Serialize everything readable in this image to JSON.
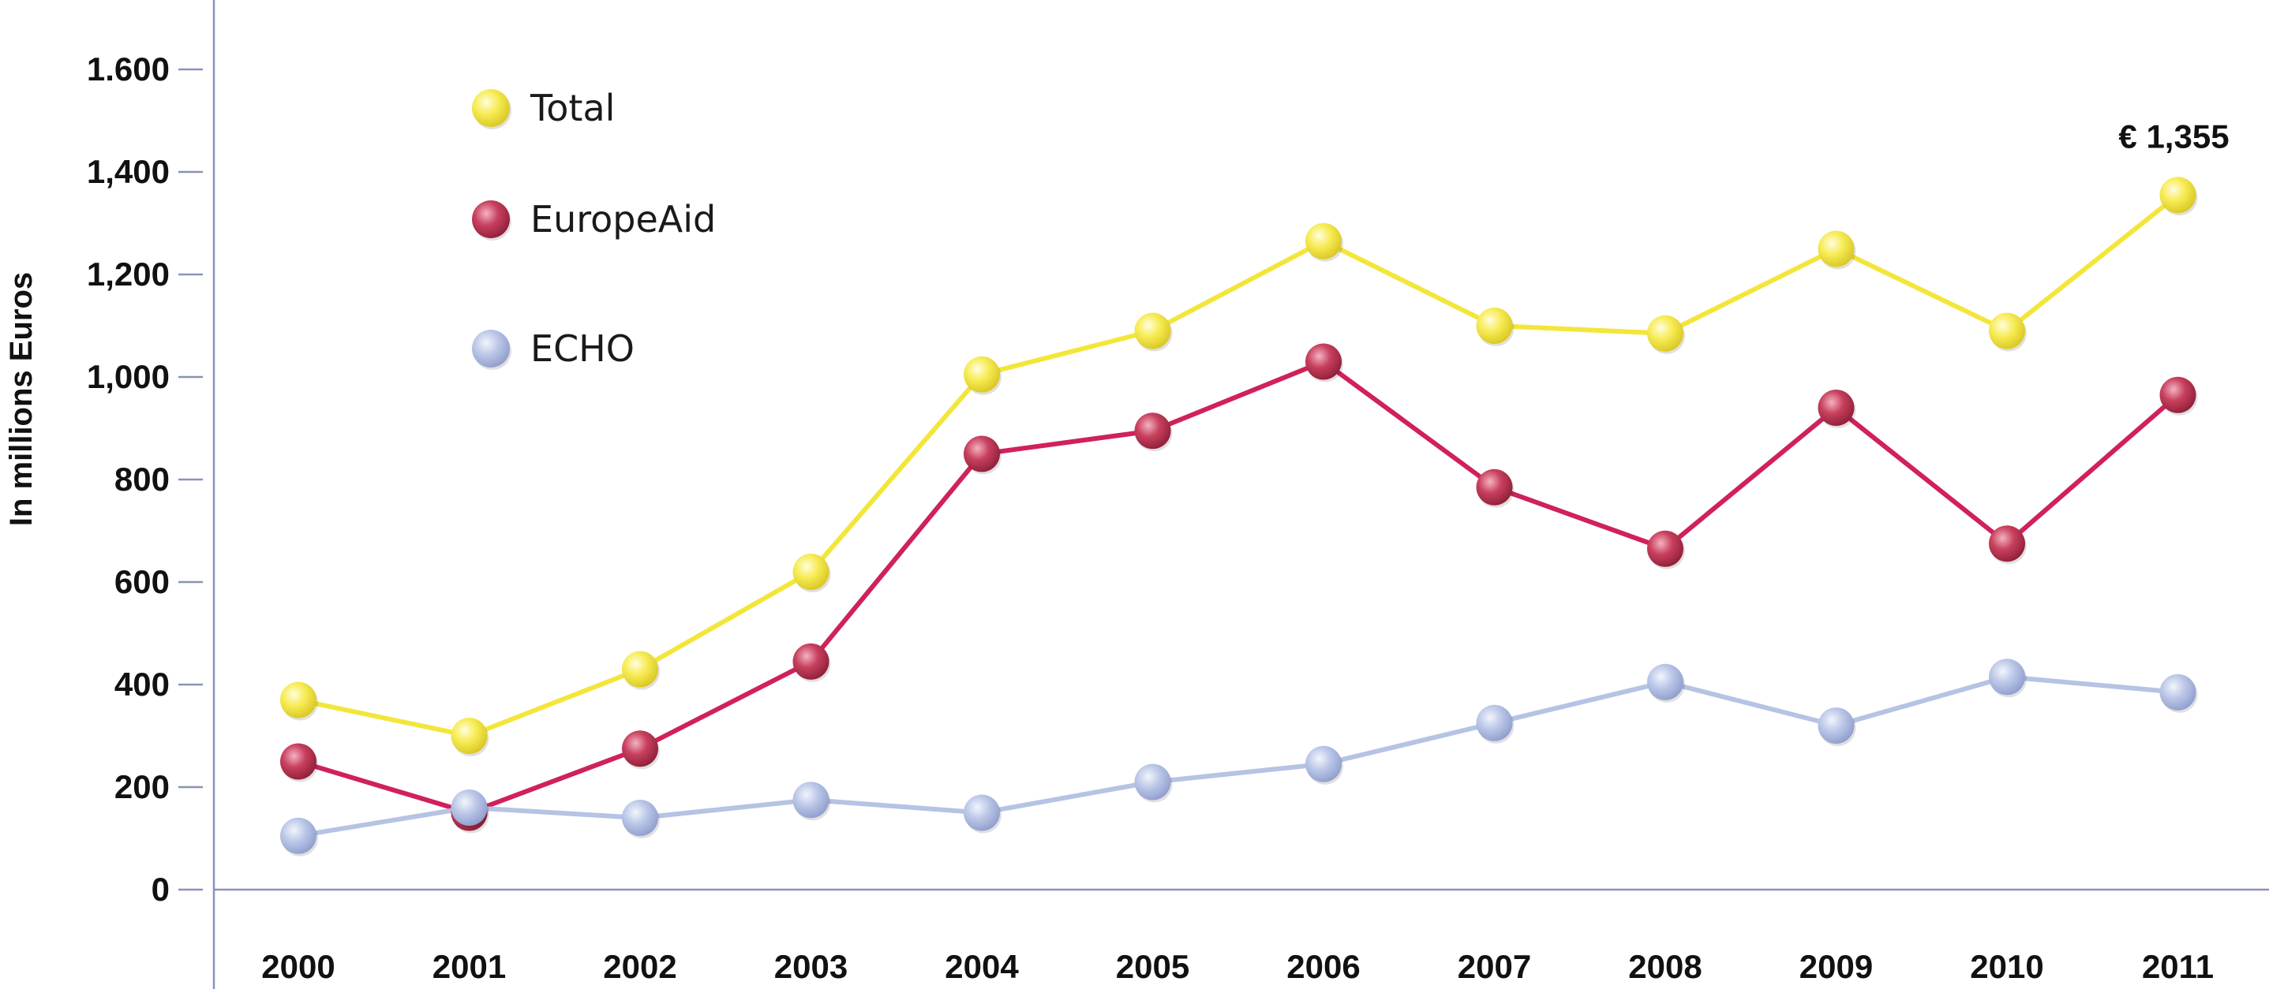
{
  "chart_data": {
    "type": "line",
    "ylabel": "In millions Euros",
    "ylim": [
      0,
      1600
    ],
    "y_ticks": [
      {
        "value": 0,
        "label": "0"
      },
      {
        "value": 200,
        "label": "200"
      },
      {
        "value": 400,
        "label": "400"
      },
      {
        "value": 600,
        "label": "600"
      },
      {
        "value": 800,
        "label": "800"
      },
      {
        "value": 1000,
        "label": "1,000"
      },
      {
        "value": 1200,
        "label": "1,200"
      },
      {
        "value": 1400,
        "label": "1,400"
      },
      {
        "value": 1600,
        "label": "1.600"
      }
    ],
    "categories": [
      "2000",
      "2001",
      "2002",
      "2003",
      "2004",
      "2005",
      "2006",
      "2007",
      "2008",
      "2009",
      "2010",
      "2011"
    ],
    "legend_position": "top-left",
    "grid": false,
    "series": [
      {
        "name": "Total",
        "color": "#f3e63a",
        "values": [
          370,
          300,
          430,
          620,
          1005,
          1090,
          1265,
          1100,
          1085,
          1250,
          1090,
          1355
        ]
      },
      {
        "name": "EuropeAid",
        "color": "#d0215a",
        "values": [
          250,
          150,
          275,
          445,
          850,
          895,
          1030,
          785,
          665,
          940,
          675,
          965
        ]
      },
      {
        "name": "ECHO",
        "color": "#b5c3e4",
        "values": [
          105,
          160,
          140,
          175,
          150,
          210,
          245,
          325,
          405,
          320,
          415,
          385
        ]
      }
    ],
    "annotations": [
      {
        "text": "€ 1,355",
        "series": "Total",
        "category": "2011"
      }
    ]
  }
}
